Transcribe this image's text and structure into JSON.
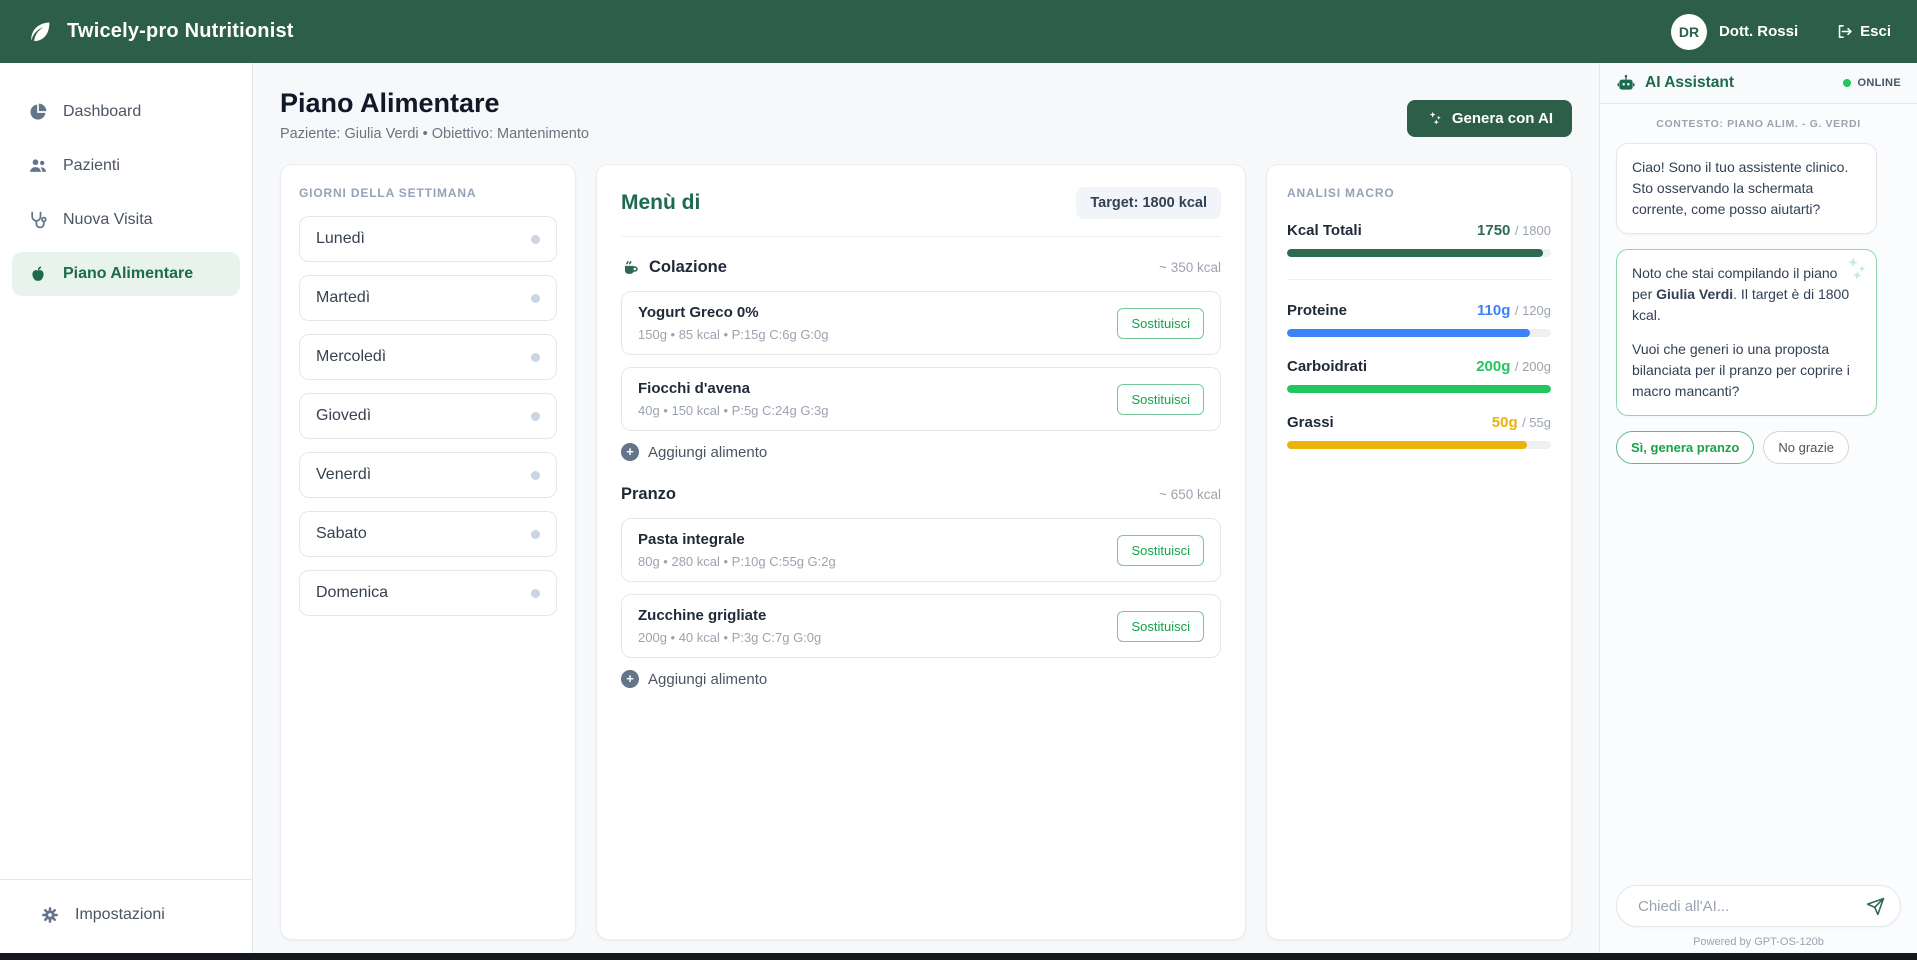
{
  "topbar": {
    "app_title": "Twicely-pro Nutritionist",
    "logo_icon": "leaf-icon",
    "user_initials": "DR",
    "user_name": "Dott. Rossi",
    "logout_label": "Esci",
    "logout_icon": "logout-icon"
  },
  "sidebar": {
    "items": [
      {
        "label": "Dashboard",
        "icon": "pie-chart-icon",
        "active": false
      },
      {
        "label": "Pazienti",
        "icon": "users-icon",
        "active": false
      },
      {
        "label": "Nuova Visita",
        "icon": "stethoscope-icon",
        "active": false
      },
      {
        "label": "Piano Alimentare",
        "icon": "apple-icon",
        "active": true
      }
    ],
    "footer": {
      "label": "Impostazioni",
      "icon": "gear-icon"
    }
  },
  "header": {
    "title": "Piano Alimentare",
    "subtitle": "Paziente: Giulia Verdi • Obiettivo: Mantenimento",
    "generate_button": "Genera con AI",
    "generate_icon": "magic-wand-icon"
  },
  "days_panel": {
    "title": "GIORNI DELLA SETTIMANA",
    "days": [
      "Lunedì",
      "Martedì",
      "Mercoledì",
      "Giovedì",
      "Venerdì",
      "Sabato",
      "Domenica"
    ]
  },
  "menu_panel": {
    "title": "Menù di",
    "target_badge": "Target: 1800 kcal",
    "add_food_label": "Aggiungi alimento",
    "substitute_label": "Sostituisci",
    "sections": [
      {
        "name": "Colazione",
        "icon": "coffee-cup-icon",
        "kcal": "~ 350 kcal",
        "items": [
          {
            "name": "Yogurt Greco 0%",
            "details": "150g • 85 kcal • P:15g C:6g G:0g"
          },
          {
            "name": "Fiocchi d'avena",
            "details": "40g • 150 kcal • P:5g C:24g G:3g"
          }
        ]
      },
      {
        "name": "Pranzo",
        "icon": null,
        "kcal": "~ 650 kcal",
        "items": [
          {
            "name": "Pasta integrale",
            "details": "80g • 280 kcal • P:10g C:55g G:2g"
          },
          {
            "name": "Zucchine grigliate",
            "details": "200g • 40 kcal • P:3g C:7g G:0g"
          }
        ]
      }
    ]
  },
  "macro_panel": {
    "title": "ANALISI MACRO",
    "rows": [
      {
        "label": "Kcal Totali",
        "value": "1750",
        "target": "/ 1800",
        "pct": 97,
        "color": "#2d6a4f"
      },
      {
        "label": "Proteine",
        "value": "110g",
        "target": "/ 120g",
        "pct": 92,
        "color": "#3b82f6"
      },
      {
        "label": "Carboidrati",
        "value": "200g",
        "target": "/ 200g",
        "pct": 100,
        "color": "#22c55e"
      },
      {
        "label": "Grassi",
        "value": "50g",
        "target": "/ 55g",
        "pct": 91,
        "color": "#eab308"
      }
    ]
  },
  "ai_panel": {
    "title": "AI Assistant",
    "robot_icon": "robot-icon",
    "status": "ONLINE",
    "context_label": "CONTESTO: PIANO ALIM. - G. VERDI",
    "message_1": "Ciao! Sono il tuo assistente clinico. Sto osservando la schermata corrente, come posso aiutarti?",
    "message_2": {
      "part1": "Noto che stai compilando il piano per ",
      "bold": "Giulia Verdi",
      "part2": ". Il target è di 1800 kcal.",
      "part3": "Vuoi che generi io una proposta bilanciata per il pranzo per coprire i macro mancanti?"
    },
    "quick_replies": [
      {
        "label": "Sì, genera pranzo"
      },
      {
        "label": "No grazie"
      }
    ],
    "input_placeholder": "Chiedi all'AI...",
    "send_icon": "send-icon",
    "powered_by": "Powered by GPT-OS-120b"
  },
  "colors": {
    "brand_green": "#2c5e49",
    "accent_green": "#1d6a4e",
    "online_green": "#22c55e",
    "protein_blue": "#3b82f6",
    "carb_green": "#22c55e",
    "fat_yellow": "#eab308"
  }
}
